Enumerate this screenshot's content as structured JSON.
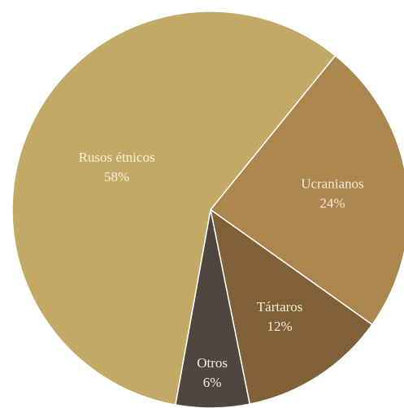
{
  "chart_data": {
    "type": "pie",
    "title": "",
    "start_angle_deg": -51,
    "direction": "clockwise",
    "legend": "none",
    "slices": [
      {
        "label": "Ucranianos",
        "value": 24,
        "value_label": "24%",
        "color": "#ab864f"
      },
      {
        "label": "Tártaros",
        "value": 12,
        "value_label": "12%",
        "color": "#806036"
      },
      {
        "label": "Otros",
        "value": 6,
        "value_label": "6%",
        "color": "#4f473f"
      },
      {
        "label": "Rusos étnicos",
        "value": 58,
        "value_label": "58%",
        "color": "#c2aa66"
      }
    ]
  }
}
